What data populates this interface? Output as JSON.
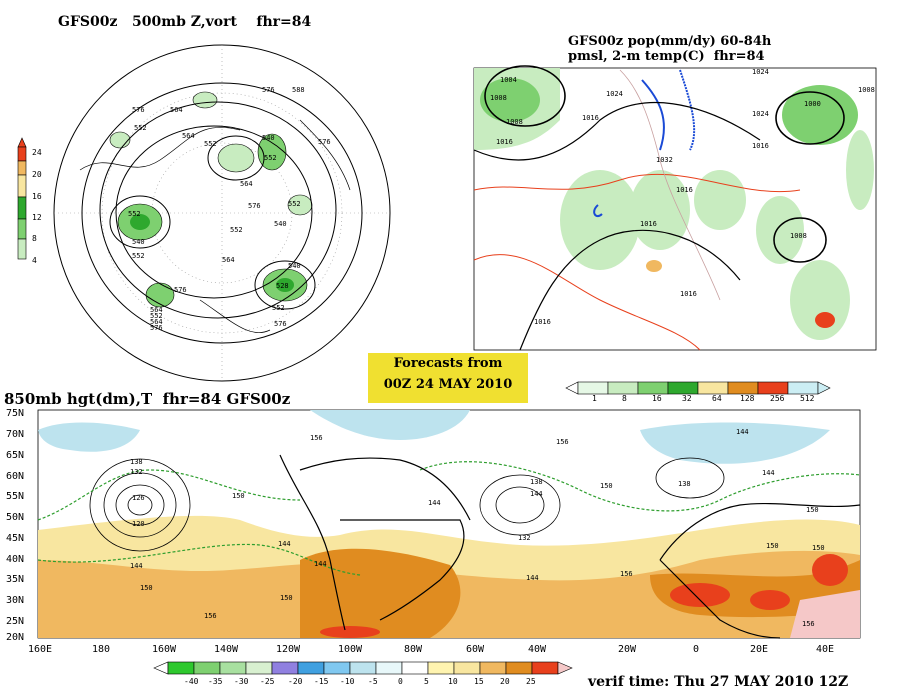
{
  "panel_a": {
    "title": "GFS00z   500mb Z,vort    fhr=84",
    "colorbar_labels": [
      "24",
      "20",
      "16",
      "12",
      "8",
      "4"
    ],
    "contour_labels": [
      "576",
      "588",
      "576",
      "564",
      "552",
      "564",
      "552",
      "576",
      "540",
      "552",
      "564",
      "552",
      "540",
      "552",
      "576",
      "540",
      "552",
      "564",
      "552",
      "528",
      "540",
      "552",
      "564",
      "576",
      "576",
      "552",
      "564",
      "576"
    ]
  },
  "panel_b": {
    "title_line1": "GFS00z pop(mm/dy) 60-84h",
    "title_line2": "pmsl, 2-m temp(C)  fhr=84",
    "contour_labels": [
      "1004",
      "1008",
      "1008",
      "1016",
      "1024",
      "1024",
      "1016",
      "1032",
      "1024",
      "1000",
      "1016",
      "1016",
      "1008",
      "1016",
      "1008",
      "1016",
      "1016"
    ],
    "colorbar_labels": [
      "1",
      "8",
      "16",
      "32",
      "64",
      "128",
      "256",
      "512"
    ]
  },
  "banner": {
    "line1": "Forecasts from",
    "line2": "00Z 24 MAY 2010"
  },
  "panel_c": {
    "title": "850mb hgt(dm),T  fhr=84 GFS00z",
    "lat_labels": [
      "75N",
      "70N",
      "65N",
      "60N",
      "55N",
      "50N",
      "45N",
      "40N",
      "35N",
      "30N",
      "25N",
      "20N"
    ],
    "lon_labels": [
      "160E",
      "180",
      "160W",
      "140W",
      "120W",
      "100W",
      "80W",
      "60W",
      "40W",
      "20W",
      "0",
      "20E",
      "40E"
    ],
    "contour_labels": [
      "156",
      "138",
      "132",
      "126",
      "120",
      "144",
      "150",
      "156",
      "150",
      "144",
      "144",
      "144",
      "150",
      "138",
      "144",
      "132",
      "144",
      "156",
      "156",
      "144",
      "138",
      "150",
      "150",
      "150",
      "156",
      "144",
      "150"
    ],
    "colorbar_labels": [
      "-40",
      "-35",
      "-30",
      "-25",
      "-20",
      "-15",
      "-10",
      "-5",
      "0",
      "5",
      "10",
      "15",
      "20",
      "25"
    ]
  },
  "footer": {
    "verif": "verif time: Thu 27 MAY 2010 12Z"
  },
  "colors": {
    "precip_light": "#c8ecc0",
    "precip_mid": "#7ed070",
    "precip_dark": "#2ea82e",
    "temp_cold_blue": "#bde3ee",
    "temp_warm_yellow": "#f8e6a0",
    "temp_orange": "#f0b860",
    "temp_deep_orange": "#e08c20",
    "temp_red": "#e8401c",
    "temp_pink": "#f5c8c8",
    "banner": "#f0e030"
  }
}
